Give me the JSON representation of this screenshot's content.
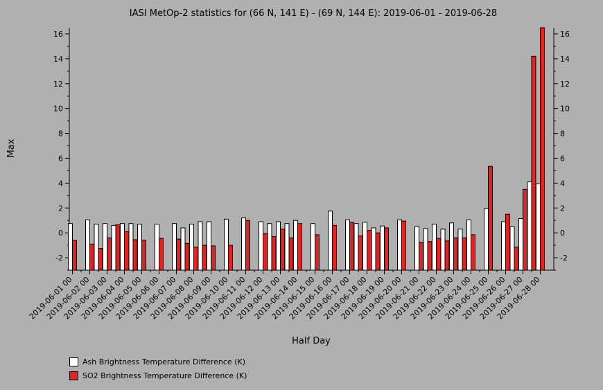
{
  "chart_data": {
    "type": "bar",
    "title": "IASI MetOp-2 statistics for (66 N, 141 E) - (69 N, 144 E): 2019-06-01 - 2019-06-28",
    "xlabel": "Half Day",
    "ylabel": "Max",
    "ylim": [
      -3,
      16.5
    ],
    "yticks": [
      -2,
      0,
      2,
      4,
      6,
      8,
      10,
      12,
      14,
      16
    ],
    "grid": false,
    "legend_position": "bottom-left",
    "date_labels": [
      "2019-06-01 00",
      "2019-06-02 00",
      "2019-06-03 00",
      "2019-06-04 00",
      "2019-06-05 00",
      "2019-06-06 00",
      "2019-06-07 00",
      "2019-06-08 00",
      "2019-06-09 00",
      "2019-06-10 00",
      "2019-06-11 00",
      "2019-06-12 00",
      "2019-06-13 00",
      "2019-06-14 00",
      "2019-06-15 00",
      "2019-06-16 00",
      "2019-06-17 00",
      "2019-06-18 00",
      "2019-06-19 00",
      "2019-06-20 00",
      "2019-06-21 00",
      "2019-06-22 00",
      "2019-06-23 00",
      "2019-06-24 00",
      "2019-06-25 00",
      "2019-06-26 00",
      "2019-06-27 00",
      "2019-06-28 00"
    ],
    "categories": [
      "2019-06-01 00",
      "2019-06-01 12",
      "2019-06-02 00",
      "2019-06-02 12",
      "2019-06-03 00",
      "2019-06-03 12",
      "2019-06-04 00",
      "2019-06-04 12",
      "2019-06-05 00",
      "2019-06-05 12",
      "2019-06-06 00",
      "2019-06-06 12",
      "2019-06-07 00",
      "2019-06-07 12",
      "2019-06-08 00",
      "2019-06-08 12",
      "2019-06-09 00",
      "2019-06-09 12",
      "2019-06-10 00",
      "2019-06-10 12",
      "2019-06-11 00",
      "2019-06-11 12",
      "2019-06-12 00",
      "2019-06-12 12",
      "2019-06-13 00",
      "2019-06-13 12",
      "2019-06-14 00",
      "2019-06-14 12",
      "2019-06-15 00",
      "2019-06-15 12",
      "2019-06-16 00",
      "2019-06-16 12",
      "2019-06-17 00",
      "2019-06-17 12",
      "2019-06-18 00",
      "2019-06-18 12",
      "2019-06-19 00",
      "2019-06-19 12",
      "2019-06-20 00",
      "2019-06-20 12",
      "2019-06-21 00",
      "2019-06-21 12",
      "2019-06-22 00",
      "2019-06-22 12",
      "2019-06-23 00",
      "2019-06-23 12",
      "2019-06-24 00",
      "2019-06-24 12",
      "2019-06-25 00",
      "2019-06-25 12",
      "2019-06-26 00",
      "2019-06-26 12",
      "2019-06-27 00",
      "2019-06-27 12",
      "2019-06-28 00"
    ],
    "series": [
      {
        "name": "Ash Brightness Temperature Difference (K)",
        "color": "#ffffff",
        "values": [
          0.75,
          null,
          1.05,
          0.7,
          0.75,
          0.6,
          0.75,
          0.75,
          0.7,
          null,
          0.7,
          null,
          0.75,
          0.4,
          0.7,
          0.9,
          0.9,
          null,
          1.1,
          null,
          1.2,
          null,
          0.9,
          0.75,
          0.9,
          0.75,
          1.0,
          null,
          0.75,
          null,
          1.75,
          null,
          1.05,
          0.75,
          0.85,
          0.4,
          0.55,
          null,
          1.05,
          null,
          0.5,
          0.35,
          0.7,
          0.3,
          0.8,
          0.3,
          1.05,
          null,
          1.95,
          null,
          0.9,
          0.5,
          1.15,
          4.1,
          3.95
        ]
      },
      {
        "name": "SO2 Brightness Temperature Difference (K)",
        "color": "#e42222",
        "values": [
          -0.6,
          null,
          -0.9,
          -1.25,
          -0.4,
          0.65,
          0.1,
          -0.55,
          -0.6,
          null,
          -0.45,
          null,
          -0.5,
          -0.85,
          -1.15,
          -1.0,
          -1.05,
          null,
          -1.0,
          null,
          1.0,
          null,
          -0.05,
          -0.3,
          0.3,
          -0.4,
          0.75,
          null,
          -0.15,
          null,
          0.6,
          null,
          0.85,
          -0.25,
          0.2,
          0.0,
          0.4,
          null,
          0.95,
          null,
          -0.75,
          -0.7,
          -0.45,
          -0.65,
          -0.4,
          -0.4,
          -0.15,
          null,
          5.35,
          null,
          1.5,
          -1.15,
          3.5,
          14.2,
          16.5
        ]
      }
    ]
  }
}
